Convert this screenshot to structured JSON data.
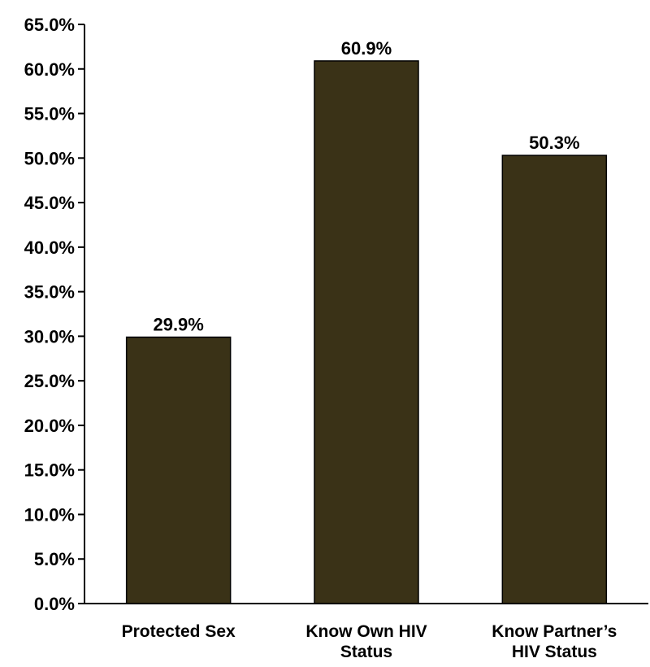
{
  "chart_data": {
    "type": "bar",
    "categories": [
      [
        "Protected Sex"
      ],
      [
        "Know Own HIV",
        "Status"
      ],
      [
        "Know Partner’s",
        "HIV Status"
      ]
    ],
    "values": [
      29.9,
      60.9,
      50.3
    ],
    "value_labels": [
      "29.9%",
      "60.9%",
      "50.3%"
    ],
    "title": "",
    "xlabel": "",
    "ylabel": "",
    "ylim": [
      0,
      65
    ],
    "yticks": [
      0,
      5,
      10,
      15,
      20,
      25,
      30,
      35,
      40,
      45,
      50,
      55,
      60,
      65
    ],
    "ytick_labels": [
      "0.0%",
      "5.0%",
      "10.0%",
      "15.0%",
      "20.0%",
      "25.0%",
      "30.0%",
      "35.0%",
      "40.0%",
      "45.0%",
      "50.0%",
      "55.0%",
      "60.0%",
      "65.0%"
    ],
    "grid": false,
    "legend": "none",
    "bar_color": "#3a3217",
    "bar_edge_color": "#000000"
  }
}
